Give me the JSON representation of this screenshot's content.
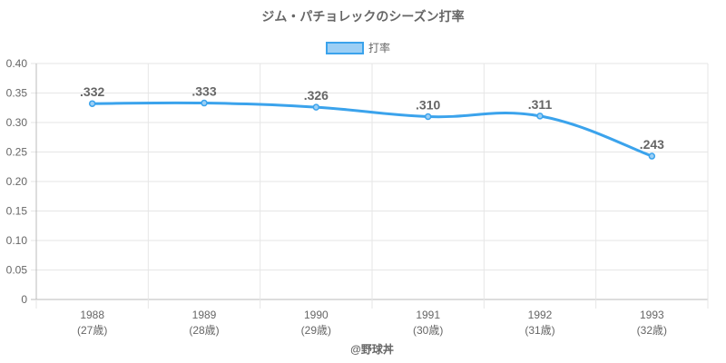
{
  "chart_data": {
    "type": "line",
    "title": "ジム・パチョレックのシーズン打率",
    "legend": {
      "label": "打率",
      "placement": "top"
    },
    "categories": [
      "1988",
      "1989",
      "1990",
      "1991",
      "1992",
      "1993"
    ],
    "sublabels": [
      "(27歳)",
      "(28歳)",
      "(29歳)",
      "(30歳)",
      "(31歳)",
      "(32歳)"
    ],
    "series": [
      {
        "name": "打率",
        "values": [
          0.332,
          0.333,
          0.326,
          0.31,
          0.311,
          0.243
        ]
      }
    ],
    "data_labels": [
      ".332",
      ".333",
      ".326",
      ".310",
      ".311",
      ".243"
    ],
    "y_ticks": [
      "0",
      "0.05",
      "0.10",
      "0.15",
      "0.20",
      "0.25",
      "0.30",
      "0.35",
      "0.40"
    ],
    "ylim": [
      0,
      0.4
    ],
    "grid": true,
    "colors": {
      "line": "#3ba3ec",
      "fill": "#9ccff5"
    },
    "credit": "@野球丼"
  }
}
